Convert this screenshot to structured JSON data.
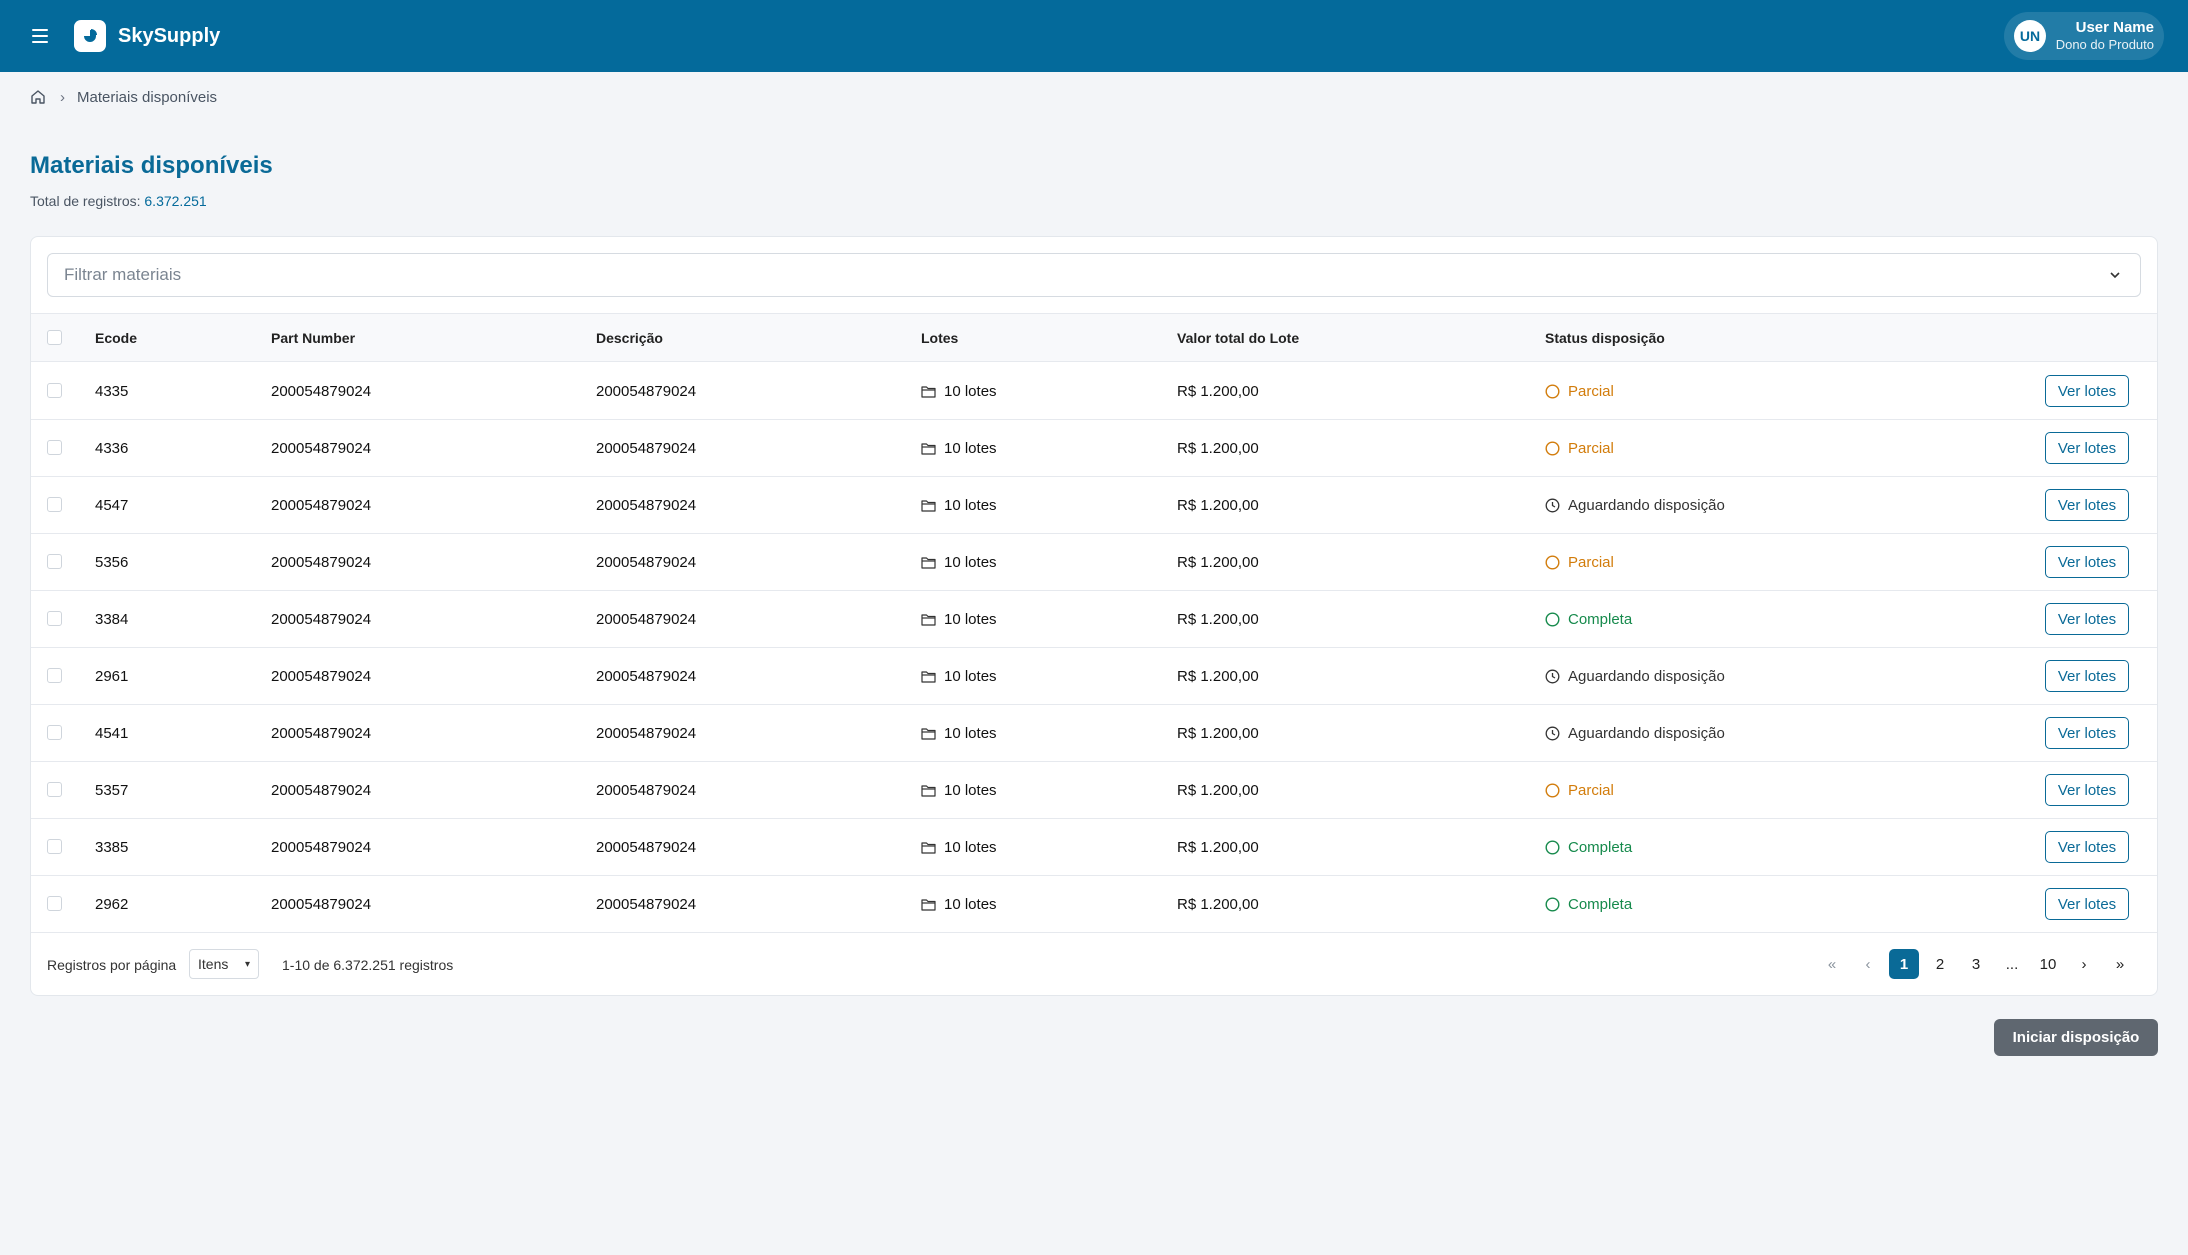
{
  "app": {
    "name": "SkySupply"
  },
  "user": {
    "initials": "UN",
    "name": "User Name",
    "role": "Dono do Produto"
  },
  "breadcrumb": {
    "current": "Materiais disponíveis"
  },
  "page": {
    "title": "Materiais disponíveis",
    "total_label": "Total de registros:",
    "total_value": "6.372.251"
  },
  "filter": {
    "placeholder": "Filtrar materiais"
  },
  "table": {
    "headers": {
      "ecode": "Ecode",
      "part_number": "Part Number",
      "descricao": "Descrição",
      "lotes": "Lotes",
      "valor": "Valor total do Lote",
      "status": "Status disposição"
    },
    "rows": [
      {
        "ecode": "4335",
        "part_number": "200054879024",
        "descricao": "200054879024",
        "lotes": "10 lotes",
        "valor": "R$ 1.200,00",
        "status": "Parcial",
        "action": "Ver lotes"
      },
      {
        "ecode": "4336",
        "part_number": "200054879024",
        "descricao": "200054879024",
        "lotes": "10 lotes",
        "valor": "R$ 1.200,00",
        "status": "Parcial",
        "action": "Ver lotes"
      },
      {
        "ecode": "4547",
        "part_number": "200054879024",
        "descricao": "200054879024",
        "lotes": "10 lotes",
        "valor": "R$ 1.200,00",
        "status": "Aguardando disposição",
        "action": "Ver lotes"
      },
      {
        "ecode": "5356",
        "part_number": "200054879024",
        "descricao": "200054879024",
        "lotes": "10 lotes",
        "valor": "R$ 1.200,00",
        "status": "Parcial",
        "action": "Ver lotes"
      },
      {
        "ecode": "3384",
        "part_number": "200054879024",
        "descricao": "200054879024",
        "lotes": "10 lotes",
        "valor": "R$ 1.200,00",
        "status": "Completa",
        "action": "Ver lotes"
      },
      {
        "ecode": "2961",
        "part_number": "200054879024",
        "descricao": "200054879024",
        "lotes": "10 lotes",
        "valor": "R$ 1.200,00",
        "status": "Aguardando disposição",
        "action": "Ver lotes"
      },
      {
        "ecode": "4541",
        "part_number": "200054879024",
        "descricao": "200054879024",
        "lotes": "10 lotes",
        "valor": "R$ 1.200,00",
        "status": "Aguardando disposição",
        "action": "Ver lotes"
      },
      {
        "ecode": "5357",
        "part_number": "200054879024",
        "descricao": "200054879024",
        "lotes": "10 lotes",
        "valor": "R$ 1.200,00",
        "status": "Parcial",
        "action": "Ver lotes"
      },
      {
        "ecode": "3385",
        "part_number": "200054879024",
        "descricao": "200054879024",
        "lotes": "10 lotes",
        "valor": "R$ 1.200,00",
        "status": "Completa",
        "action": "Ver lotes"
      },
      {
        "ecode": "2962",
        "part_number": "200054879024",
        "descricao": "200054879024",
        "lotes": "10 lotes",
        "valor": "R$ 1.200,00",
        "status": "Completa",
        "action": "Ver lotes"
      }
    ]
  },
  "footer": {
    "per_page_label": "Registros por página",
    "per_page_value": "Itens",
    "range": "1-10 de 6.372.251 registros",
    "pager": {
      "first": "«",
      "prev": "‹",
      "pages": [
        "1",
        "2",
        "3"
      ],
      "ellipsis": "...",
      "last_page": "10",
      "next": "›",
      "last": "»",
      "active": "1"
    }
  },
  "actions": {
    "primary": "Iniciar disposição"
  },
  "colors": {
    "brand": "#046a9b",
    "parcial": "#d27c0b",
    "completa": "#168a4c",
    "primary_button": "#5f6770"
  }
}
